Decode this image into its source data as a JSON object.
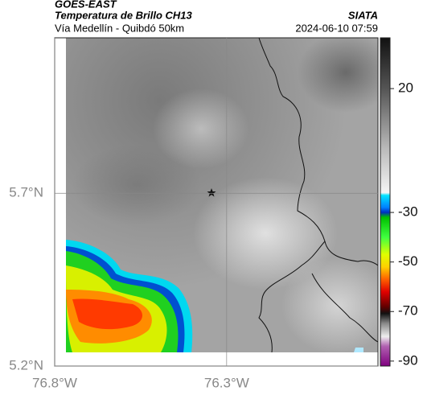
{
  "header": {
    "source": "GOES-EAST",
    "product": "Temperatura de Brillo CH13",
    "brand": "SIATA",
    "route": "Vía Medellín - Quibdó 50km",
    "timestamp": "2024-06-10 07:59"
  },
  "map": {
    "lonlim": [
      -76.8,
      -75.86
    ],
    "latlim": [
      5.2,
      6.15
    ],
    "lonticks": [
      {
        "value": -76.8,
        "label": "76.8°W"
      },
      {
        "value": -76.3,
        "label": "76.3°W"
      }
    ],
    "latticks": [
      {
        "value": 5.7,
        "label": "5.7°N"
      },
      {
        "value": 5.2,
        "label": "5.2°N"
      }
    ],
    "colorbar": {
      "lim": [
        -92,
        40.5
      ],
      "ticks": [
        20,
        -30,
        -50,
        -70,
        -90
      ]
    }
  }
}
